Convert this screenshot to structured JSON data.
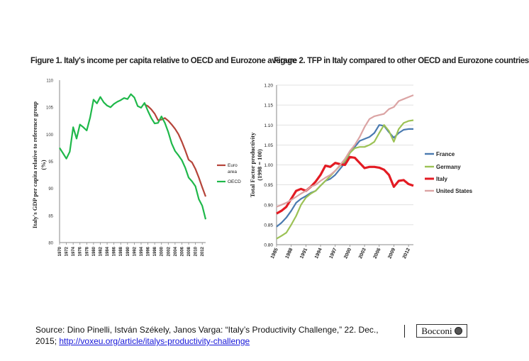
{
  "figure1": {
    "title": "Figure 1. Italy's income per capita relative to OECD and Eurozone average"
  },
  "figure2": {
    "title": "Figure 2. TFP in Italy compared to other OECD and Eurozone countries"
  },
  "source": {
    "text": "Source: Dino Pinelli, István Székely, Janos Varga: “Italy’s Productivity Challenge,” 22. Dec., 2015; ",
    "link": "http://voxeu.org/article/italys-productivity-challenge"
  },
  "logo": {
    "text": "Bocconi"
  },
  "colors": {
    "euro": "#b5443a",
    "oecd": "#1fb84a",
    "france": "#4a7ab0",
    "germany": "#9cc255",
    "italy": "#e31b23",
    "us": "#dba4a4"
  },
  "chart_data": [
    {
      "type": "line",
      "title": "Figure 1. Italy's income per capita relative to OECD and Eurozone average",
      "ylabel": "Italy's GDP per capita relative to reference group (%)",
      "xlabel": "",
      "ylim": [
        80,
        110
      ],
      "yticks": [
        80,
        85,
        90,
        95,
        100,
        105,
        110
      ],
      "xticks": [
        "1970",
        "1972",
        "1974",
        "1976",
        "1978",
        "1980",
        "1982",
        "1984",
        "1986",
        "1988",
        "1990",
        "1992",
        "1994",
        "1996",
        "1998",
        "2000",
        "2002",
        "2004",
        "2006",
        "2008",
        "2010",
        "2012"
      ],
      "legend": "right",
      "series": [
        {
          "name": "Euro area",
          "color": "#b5443a",
          "x": [
            1995,
            1996,
            1997,
            1998,
            1999,
            2000,
            2001,
            2002,
            2003,
            2004,
            2005,
            2006,
            2007,
            2008,
            2009,
            2010,
            2011,
            2012,
            2013
          ],
          "values": [
            105.5,
            105.2,
            104.6,
            103.8,
            102.6,
            102.7,
            103.0,
            102.5,
            101.8,
            101.0,
            100.0,
            98.6,
            97.0,
            95.3,
            94.8,
            93.6,
            92.0,
            90.2,
            88.5
          ]
        },
        {
          "name": "OECD",
          "color": "#1fb84a",
          "x": [
            1970,
            1971,
            1972,
            1973,
            1974,
            1975,
            1976,
            1977,
            1978,
            1979,
            1980,
            1981,
            1982,
            1983,
            1984,
            1985,
            1986,
            1987,
            1988,
            1989,
            1990,
            1991,
            1992,
            1993,
            1994,
            1995,
            1996,
            1997,
            1998,
            1999,
            2000,
            2001,
            2002,
            2003,
            2004,
            2005,
            2006,
            2007,
            2008,
            2009,
            2010,
            2011,
            2012,
            2013
          ],
          "values": [
            97.5,
            96.5,
            95.5,
            96.8,
            101.3,
            99.2,
            101.8,
            101.3,
            100.7,
            103.1,
            106.4,
            105.7,
            106.9,
            105.9,
            105.3,
            105.0,
            105.6,
            106.0,
            106.3,
            106.7,
            106.5,
            107.4,
            106.8,
            105.2,
            104.9,
            105.8,
            104.3,
            103.0,
            102.0,
            102.1,
            103.3,
            102.1,
            100.4,
            98.3,
            96.9,
            96.1,
            95.2,
            93.8,
            92.0,
            91.3,
            90.4,
            88.0,
            86.8,
            84.3
          ]
        }
      ]
    },
    {
      "type": "line",
      "title": "Figure 2. TFP in Italy compared to other OECD and Eurozone countries",
      "ylabel": "Total Factor productivity (1998 = 100)",
      "xlabel": "",
      "ylim": [
        0.8,
        1.2
      ],
      "yticks": [
        "0.80",
        "0.85",
        "0.90",
        "0.95",
        "1.00",
        "1.05",
        "1.10",
        "1.15",
        "1.20"
      ],
      "xticks": [
        "1985",
        "1988",
        "1991",
        "1994",
        "1997",
        "2000",
        "2003",
        "2006",
        "2009",
        "2012"
      ],
      "legend": "right",
      "x": [
        1985,
        1986,
        1987,
        1988,
        1989,
        1990,
        1991,
        1992,
        1993,
        1994,
        1995,
        1996,
        1997,
        1998,
        1999,
        2000,
        2001,
        2002,
        2003,
        2004,
        2005,
        2006,
        2007,
        2008,
        2009,
        2010,
        2011,
        2012,
        2013
      ],
      "series": [
        {
          "name": "France",
          "color": "#4a7ab0",
          "values": [
            0.845,
            0.855,
            0.868,
            0.885,
            0.905,
            0.915,
            0.922,
            0.93,
            0.935,
            0.948,
            0.96,
            0.965,
            0.975,
            0.99,
            1.005,
            1.03,
            1.045,
            1.06,
            1.065,
            1.07,
            1.08,
            1.1,
            1.098,
            1.082,
            1.068,
            1.08,
            1.088,
            1.09,
            1.09
          ]
        },
        {
          "name": "Germany",
          "color": "#9cc255",
          "values": [
            0.815,
            0.822,
            0.83,
            0.85,
            0.872,
            0.9,
            0.918,
            0.928,
            0.935,
            0.948,
            0.96,
            0.972,
            0.985,
            0.998,
            1.01,
            1.03,
            1.042,
            1.045,
            1.045,
            1.05,
            1.058,
            1.08,
            1.1,
            1.085,
            1.058,
            1.09,
            1.105,
            1.11,
            1.112
          ]
        },
        {
          "name": "Italy",
          "color": "#e31b23",
          "values": [
            0.878,
            0.885,
            0.895,
            0.915,
            0.935,
            0.94,
            0.935,
            0.945,
            0.958,
            0.975,
            0.998,
            0.995,
            1.005,
            1.002,
            1.0,
            1.02,
            1.018,
            1.005,
            0.992,
            0.995,
            0.995,
            0.993,
            0.988,
            0.975,
            0.945,
            0.96,
            0.962,
            0.952,
            0.948
          ]
        },
        {
          "name": "United States",
          "color": "#dba4a4",
          "values": [
            0.895,
            0.9,
            0.905,
            0.912,
            0.92,
            0.928,
            0.935,
            0.945,
            0.95,
            0.96,
            0.968,
            0.975,
            0.985,
            1.0,
            1.015,
            1.035,
            1.05,
            1.07,
            1.095,
            1.115,
            1.122,
            1.125,
            1.128,
            1.14,
            1.145,
            1.16,
            1.165,
            1.17,
            1.175
          ]
        }
      ]
    }
  ]
}
